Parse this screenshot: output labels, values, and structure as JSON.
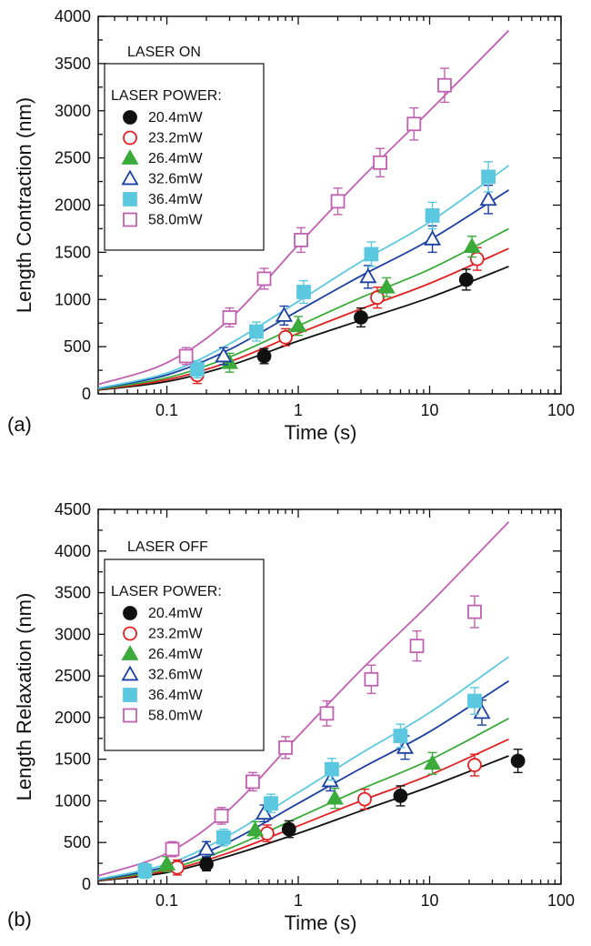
{
  "chart_data": [
    {
      "type": "line",
      "panel_label": "(a)",
      "annotation": "LASER ON",
      "xlabel": "Time (s)",
      "ylabel": "Length Contraction (nm)",
      "xscale": "log",
      "xlim": [
        0.03,
        100
      ],
      "ylim": [
        0,
        4000
      ],
      "xticks": [
        0.1,
        1,
        10,
        100
      ],
      "xtick_labels": [
        "0.1",
        "1",
        "10",
        "100"
      ],
      "yticks": [
        0,
        500,
        1000,
        1500,
        2000,
        2500,
        3000,
        3500,
        4000
      ],
      "ytick_labels": [
        "0",
        "500",
        "1000",
        "1500",
        "2000",
        "2500",
        "3000",
        "3500",
        "4000"
      ],
      "legend_title": "LASER POWER:",
      "legend_position": "top-left",
      "grid": false,
      "series": [
        {
          "name": "20.4mW",
          "color": "#111111",
          "marker": "filled-circle",
          "points": [
            [
              0.55,
              400
            ],
            [
              3.0,
              810
            ],
            [
              19.0,
              1210
            ]
          ],
          "errors": [
            80,
            100,
            110
          ],
          "fit": [
            [
              0.03,
              40
            ],
            [
              0.1,
              130
            ],
            [
              0.3,
              300
            ],
            [
              1,
              560
            ],
            [
              3,
              780
            ],
            [
              10,
              1020
            ],
            [
              40,
              1350
            ]
          ]
        },
        {
          "name": "23.2mW",
          "color": "#e02020",
          "marker": "open-circle",
          "points": [
            [
              0.17,
              200
            ],
            [
              0.8,
              600
            ],
            [
              4.0,
              1020
            ],
            [
              23.0,
              1430
            ]
          ],
          "errors": [
            90,
            90,
            110,
            120
          ],
          "fit": [
            [
              0.03,
              45
            ],
            [
              0.1,
              150
            ],
            [
              0.3,
              340
            ],
            [
              1,
              640
            ],
            [
              3,
              900
            ],
            [
              10,
              1170
            ],
            [
              40,
              1540
            ]
          ]
        },
        {
          "name": "26.4mW",
          "color": "#3aab3a",
          "marker": "filled-triangle",
          "points": [
            [
              0.3,
              330
            ],
            [
              1.0,
              720
            ],
            [
              4.7,
              1130
            ],
            [
              21.0,
              1560
            ]
          ],
          "errors": [
            100,
            100,
            100,
            110
          ],
          "fit": [
            [
              0.03,
              50
            ],
            [
              0.1,
              170
            ],
            [
              0.3,
              390
            ],
            [
              1,
              720
            ],
            [
              3,
              1020
            ],
            [
              10,
              1320
            ],
            [
              40,
              1750
            ]
          ]
        },
        {
          "name": "32.6mW",
          "color": "#1a3fa0",
          "marker": "open-triangle",
          "points": [
            [
              0.27,
              400
            ],
            [
              0.78,
              830
            ],
            [
              3.4,
              1240
            ],
            [
              10.5,
              1640
            ],
            [
              28.0,
              2060
            ]
          ],
          "errors": [
            90,
            100,
            120,
            140,
            150
          ],
          "fit": [
            [
              0.03,
              55
            ],
            [
              0.1,
              200
            ],
            [
              0.3,
              470
            ],
            [
              1,
              880
            ],
            [
              3,
              1250
            ],
            [
              10,
              1630
            ],
            [
              40,
              2160
            ]
          ]
        },
        {
          "name": "36.4mW",
          "color": "#5bc8e0",
          "marker": "filled-square",
          "points": [
            [
              0.17,
              260
            ],
            [
              0.48,
              660
            ],
            [
              1.1,
              1080
            ],
            [
              3.6,
              1480
            ],
            [
              10.5,
              1890
            ],
            [
              28.0,
              2300
            ]
          ],
          "errors": [
            90,
            100,
            120,
            130,
            140,
            160
          ],
          "fit": [
            [
              0.03,
              60
            ],
            [
              0.1,
              220
            ],
            [
              0.3,
              530
            ],
            [
              1,
              980
            ],
            [
              3,
              1400
            ],
            [
              10,
              1820
            ],
            [
              40,
              2420
            ]
          ]
        },
        {
          "name": "58.0mW",
          "color": "#c060b0",
          "marker": "open-square",
          "points": [
            [
              0.14,
              400
            ],
            [
              0.3,
              810
            ],
            [
              0.55,
              1220
            ],
            [
              1.05,
              1630
            ],
            [
              2.0,
              2040
            ],
            [
              4.2,
              2450
            ],
            [
              7.6,
              2860
            ],
            [
              13.0,
              3270
            ]
          ],
          "errors": [
            90,
            100,
            110,
            130,
            140,
            150,
            170,
            180
          ],
          "fit": [
            [
              0.03,
              100
            ],
            [
              0.1,
              330
            ],
            [
              0.3,
              790
            ],
            [
              1,
              1580
            ],
            [
              3,
              2280
            ],
            [
              10,
              3000
            ],
            [
              40,
              3850
            ]
          ]
        }
      ]
    },
    {
      "type": "line",
      "panel_label": "(b)",
      "annotation": "LASER OFF",
      "xlabel": "Time (s)",
      "ylabel": "Length Relaxation (nm)",
      "xscale": "log",
      "xlim": [
        0.03,
        100
      ],
      "ylim": [
        0,
        4500
      ],
      "xticks": [
        0.1,
        1,
        10,
        100
      ],
      "xtick_labels": [
        "0.1",
        "1",
        "10",
        "100"
      ],
      "yticks": [
        0,
        500,
        1000,
        1500,
        2000,
        2500,
        3000,
        3500,
        4000,
        4500
      ],
      "ytick_labels": [
        "0",
        "500",
        "1000",
        "1500",
        "2000",
        "2500",
        "3000",
        "3500",
        "4000",
        "4500"
      ],
      "legend_title": "LASER POWER:",
      "legend_position": "top-left",
      "grid": false,
      "series": [
        {
          "name": "20.4mW",
          "color": "#111111",
          "marker": "filled-circle",
          "points": [
            [
              0.2,
              240
            ],
            [
              0.85,
              660
            ],
            [
              6.0,
              1060
            ],
            [
              47.0,
              1480
            ]
          ],
          "errors": [
            80,
            100,
            120,
            140
          ],
          "fit": [
            [
              0.03,
              40
            ],
            [
              0.1,
              140
            ],
            [
              0.3,
              340
            ],
            [
              1,
              610
            ],
            [
              3,
              880
            ],
            [
              10,
              1170
            ],
            [
              40,
              1540
            ]
          ]
        },
        {
          "name": "23.2mW",
          "color": "#e02020",
          "marker": "open-circle",
          "points": [
            [
              0.12,
              200
            ],
            [
              0.58,
              610
            ],
            [
              3.2,
              1020
            ],
            [
              22.0,
              1430
            ]
          ],
          "errors": [
            90,
            100,
            120,
            130
          ],
          "fit": [
            [
              0.03,
              45
            ],
            [
              0.1,
              160
            ],
            [
              0.3,
              380
            ],
            [
              1,
              700
            ],
            [
              3,
              1000
            ],
            [
              10,
              1310
            ],
            [
              40,
              1740
            ]
          ]
        },
        {
          "name": "26.4mW",
          "color": "#3aab3a",
          "marker": "filled-triangle",
          "points": [
            [
              0.1,
              240
            ],
            [
              0.47,
              650
            ],
            [
              1.9,
              1030
            ],
            [
              10.5,
              1450
            ]
          ],
          "errors": [
            90,
            100,
            120,
            130
          ],
          "fit": [
            [
              0.03,
              50
            ],
            [
              0.1,
              180
            ],
            [
              0.3,
              430
            ],
            [
              1,
              800
            ],
            [
              3,
              1140
            ],
            [
              10,
              1490
            ],
            [
              40,
              1990
            ]
          ]
        },
        {
          "name": "32.6mW",
          "color": "#1a3fa0",
          "marker": "open-triangle",
          "points": [
            [
              0.2,
              420
            ],
            [
              0.55,
              850
            ],
            [
              1.75,
              1240
            ],
            [
              6.5,
              1640
            ],
            [
              25.0,
              2060
            ]
          ],
          "errors": [
            90,
            100,
            120,
            140,
            150
          ],
          "fit": [
            [
              0.03,
              55
            ],
            [
              0.1,
              210
            ],
            [
              0.3,
              510
            ],
            [
              1,
              970
            ],
            [
              3,
              1390
            ],
            [
              10,
              1830
            ],
            [
              40,
              2440
            ]
          ]
        },
        {
          "name": "36.4mW",
          "color": "#5bc8e0",
          "marker": "filled-square",
          "points": [
            [
              0.068,
              160
            ],
            [
              0.27,
              560
            ],
            [
              0.62,
              970
            ],
            [
              1.8,
              1380
            ],
            [
              6.0,
              1780
            ],
            [
              22.0,
              2200
            ]
          ],
          "errors": [
            90,
            100,
            110,
            130,
            140,
            160
          ],
          "fit": [
            [
              0.03,
              60
            ],
            [
              0.1,
              240
            ],
            [
              0.3,
              590
            ],
            [
              1,
              1100
            ],
            [
              3,
              1570
            ],
            [
              10,
              2060
            ],
            [
              40,
              2730
            ]
          ]
        },
        {
          "name": "58.0mW",
          "color": "#c060b0",
          "marker": "open-square",
          "points": [
            [
              0.11,
              420
            ],
            [
              0.26,
              820
            ],
            [
              0.45,
              1230
            ],
            [
              0.8,
              1640
            ],
            [
              1.65,
              2050
            ],
            [
              3.6,
              2460
            ],
            [
              8.0,
              2860
            ],
            [
              22.0,
              3270
            ]
          ],
          "errors": [
            90,
            100,
            110,
            130,
            150,
            170,
            180,
            190
          ],
          "fit": [
            [
              0.03,
              100
            ],
            [
              0.1,
              370
            ],
            [
              0.3,
              900
            ],
            [
              1,
              1780
            ],
            [
              3,
              2570
            ],
            [
              10,
              3370
            ],
            [
              40,
              4350
            ]
          ]
        }
      ]
    }
  ]
}
